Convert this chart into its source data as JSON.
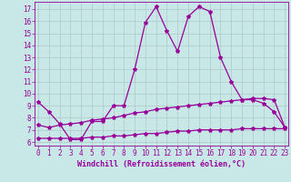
{
  "xlabel": "Windchill (Refroidissement éolien,°C)",
  "background_color": "#c8e8e8",
  "grid_color": "#b0c8c8",
  "line_color": "#990099",
  "x_ticks": [
    0,
    1,
    2,
    3,
    4,
    5,
    6,
    7,
    8,
    9,
    10,
    11,
    12,
    13,
    14,
    15,
    16,
    17,
    18,
    19,
    20,
    21,
    22,
    23
  ],
  "y_ticks": [
    6,
    7,
    8,
    9,
    10,
    11,
    12,
    13,
    14,
    15,
    16,
    17
  ],
  "ylim": [
    5.7,
    17.6
  ],
  "xlim": [
    -0.3,
    23.3
  ],
  "line1_x": [
    0,
    1,
    2,
    3,
    4,
    5,
    6,
    7,
    8,
    9,
    10,
    11,
    12,
    13,
    14,
    15,
    16,
    17,
    18,
    19,
    20,
    21,
    22,
    23
  ],
  "line1_y": [
    9.3,
    8.5,
    7.5,
    6.2,
    6.2,
    7.7,
    7.7,
    9.0,
    9.0,
    12.0,
    15.9,
    17.2,
    15.2,
    13.5,
    16.4,
    17.2,
    16.8,
    13.0,
    11.0,
    9.5,
    9.5,
    9.2,
    8.5,
    7.2
  ],
  "line2_x": [
    0,
    1,
    2,
    3,
    4,
    5,
    6,
    7,
    8,
    9,
    10,
    11,
    12,
    13,
    14,
    15,
    16,
    17,
    18,
    19,
    20,
    21,
    22,
    23
  ],
  "line2_y": [
    7.4,
    7.2,
    7.4,
    7.5,
    7.6,
    7.8,
    7.9,
    8.0,
    8.2,
    8.4,
    8.5,
    8.7,
    8.8,
    8.9,
    9.0,
    9.1,
    9.2,
    9.3,
    9.4,
    9.5,
    9.6,
    9.6,
    9.5,
    7.2
  ],
  "line3_x": [
    0,
    1,
    2,
    3,
    4,
    5,
    6,
    7,
    8,
    9,
    10,
    11,
    12,
    13,
    14,
    15,
    16,
    17,
    18,
    19,
    20,
    21,
    22,
    23
  ],
  "line3_y": [
    6.3,
    6.3,
    6.3,
    6.3,
    6.3,
    6.4,
    6.4,
    6.5,
    6.5,
    6.6,
    6.7,
    6.7,
    6.8,
    6.9,
    6.9,
    7.0,
    7.0,
    7.0,
    7.0,
    7.1,
    7.1,
    7.1,
    7.1,
    7.1
  ],
  "linewidth": 0.9,
  "markersize": 3.0,
  "tick_fontsize": 5.5,
  "xlabel_fontsize": 6.0
}
